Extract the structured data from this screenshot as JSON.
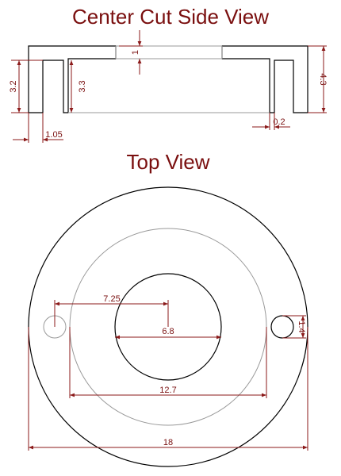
{
  "titles": {
    "side_view": "Center Cut Side View",
    "top_view": "Top View"
  },
  "side_dimensions": {
    "top_gap": "1",
    "left_height": "3.2",
    "inner_height": "3.3",
    "right_height": "4.3",
    "wall_thickness": "1.05",
    "slot_gap": "0.2"
  },
  "top_dimensions": {
    "hole_offset": "7.25",
    "inner_diameter": "6.8",
    "mid_diameter": "12.7",
    "outer_diameter": "18",
    "hole_diameter": "1.4"
  },
  "colors": {
    "title": "#7a0f0f",
    "dimension": "#8b1a1a",
    "outline": "#000000",
    "ghost": "#999999"
  }
}
